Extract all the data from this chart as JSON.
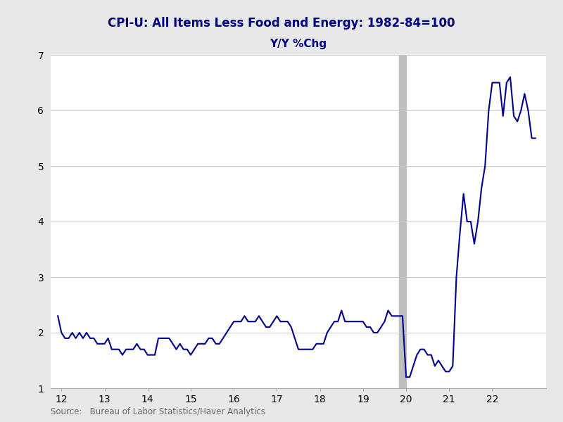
{
  "title1": "CPI-U: All Items Less Food and Energy: 1982-84=100",
  "title2": "Y/Y %Chg",
  "source": "Source:   Bureau of Labor Statistics/Haver Analytics",
  "line_color": "#00008B",
  "background_color": "#E8E8E8",
  "plot_bg_color": "#FFFFFF",
  "shading_color": "#BEBEBE",
  "shading_x_start": 19.83,
  "shading_x_end": 20.0,
  "ylim": [
    1.0,
    7.0
  ],
  "xlim": [
    11.75,
    23.25
  ],
  "yticks": [
    1,
    2,
    3,
    4,
    5,
    6,
    7
  ],
  "xticks": [
    12,
    13,
    14,
    15,
    16,
    17,
    18,
    19,
    20,
    21,
    22
  ],
  "dates_numeric": [
    11.917,
    12.0,
    12.083,
    12.167,
    12.25,
    12.333,
    12.417,
    12.5,
    12.583,
    12.667,
    12.75,
    12.833,
    12.917,
    13.0,
    13.083,
    13.167,
    13.25,
    13.333,
    13.417,
    13.5,
    13.583,
    13.667,
    13.75,
    13.833,
    13.917,
    14.0,
    14.083,
    14.167,
    14.25,
    14.333,
    14.417,
    14.5,
    14.583,
    14.667,
    14.75,
    14.833,
    14.917,
    15.0,
    15.083,
    15.167,
    15.25,
    15.333,
    15.417,
    15.5,
    15.583,
    15.667,
    15.75,
    15.833,
    15.917,
    16.0,
    16.083,
    16.167,
    16.25,
    16.333,
    16.417,
    16.5,
    16.583,
    16.667,
    16.75,
    16.833,
    16.917,
    17.0,
    17.083,
    17.167,
    17.25,
    17.333,
    17.417,
    17.5,
    17.583,
    17.667,
    17.75,
    17.833,
    17.917,
    18.0,
    18.083,
    18.167,
    18.25,
    18.333,
    18.417,
    18.5,
    18.583,
    18.667,
    18.75,
    18.833,
    18.917,
    19.0,
    19.083,
    19.167,
    19.25,
    19.333,
    19.417,
    19.5,
    19.583,
    19.667,
    19.75,
    19.833,
    19.917,
    20.0,
    20.083,
    20.167,
    20.25,
    20.333,
    20.417,
    20.5,
    20.583,
    20.667,
    20.75,
    20.833,
    20.917,
    21.0,
    21.083,
    21.167,
    21.25,
    21.333,
    21.417,
    21.5,
    21.583,
    21.667,
    21.75,
    21.833,
    21.917,
    22.0,
    22.083,
    22.167,
    22.25,
    22.333,
    22.417,
    22.5,
    22.583,
    22.667,
    22.75,
    22.833,
    22.917,
    23.0
  ],
  "values": [
    2.3,
    2.0,
    1.9,
    1.9,
    2.0,
    1.9,
    2.0,
    1.9,
    2.0,
    1.9,
    1.9,
    1.8,
    1.8,
    1.8,
    1.9,
    1.7,
    1.7,
    1.7,
    1.6,
    1.7,
    1.7,
    1.7,
    1.8,
    1.7,
    1.7,
    1.6,
    1.6,
    1.6,
    1.9,
    1.9,
    1.9,
    1.9,
    1.8,
    1.7,
    1.8,
    1.7,
    1.7,
    1.6,
    1.7,
    1.8,
    1.8,
    1.8,
    1.9,
    1.9,
    1.8,
    1.8,
    1.9,
    2.0,
    2.1,
    2.2,
    2.2,
    2.2,
    2.3,
    2.2,
    2.2,
    2.2,
    2.3,
    2.2,
    2.1,
    2.1,
    2.2,
    2.3,
    2.2,
    2.2,
    2.2,
    2.1,
    1.9,
    1.7,
    1.7,
    1.7,
    1.7,
    1.7,
    1.8,
    1.8,
    1.8,
    2.0,
    2.1,
    2.2,
    2.2,
    2.4,
    2.2,
    2.2,
    2.2,
    2.2,
    2.2,
    2.2,
    2.1,
    2.1,
    2.0,
    2.0,
    2.1,
    2.2,
    2.4,
    2.3,
    2.3,
    2.3,
    2.3,
    1.2,
    1.2,
    1.4,
    1.6,
    1.7,
    1.7,
    1.6,
    1.6,
    1.4,
    1.5,
    1.4,
    1.3,
    1.3,
    1.4,
    3.0,
    3.8,
    4.5,
    4.0,
    4.0,
    3.6,
    4.0,
    4.6,
    5.0,
    6.0,
    6.5,
    6.5,
    6.5,
    5.9,
    6.5,
    6.6,
    5.9,
    5.8,
    6.0,
    6.3,
    6.0,
    5.5,
    5.5
  ],
  "line_width": 1.5,
  "title_fontsize": 12,
  "subtitle_fontsize": 11,
  "tick_fontsize": 10,
  "source_fontsize": 8.5
}
